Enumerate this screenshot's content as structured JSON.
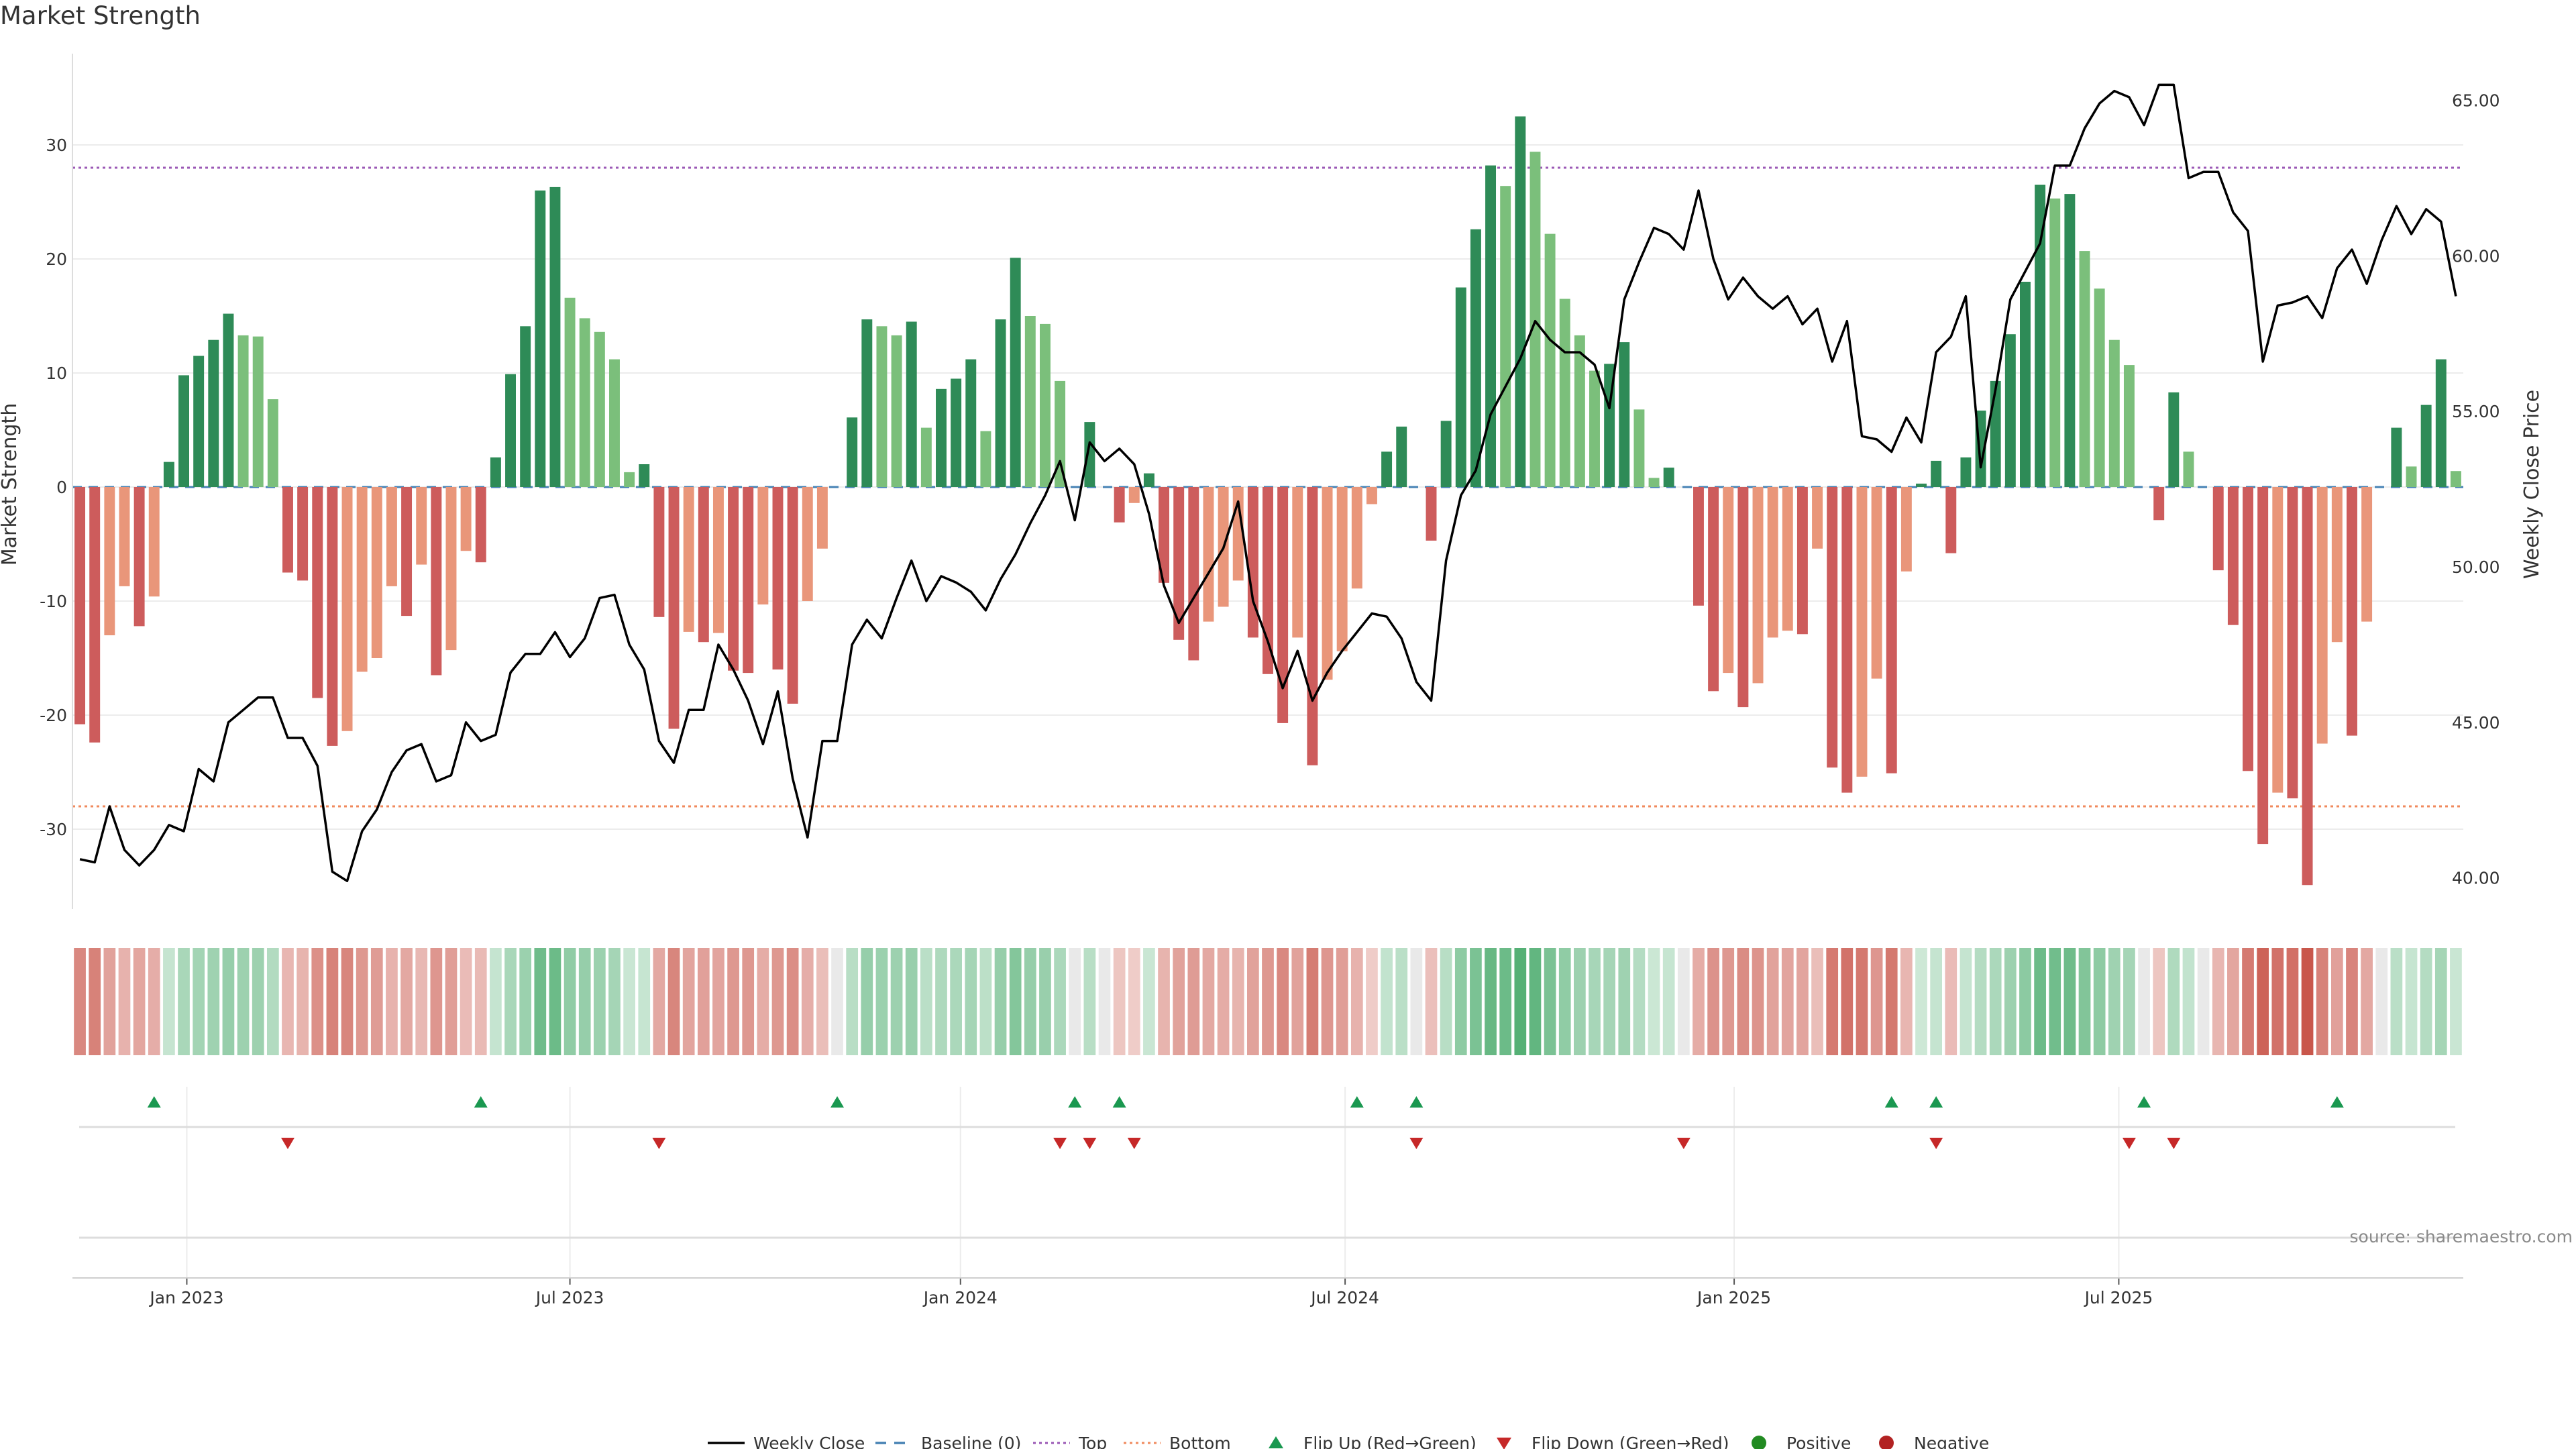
{
  "title": "Market Strength",
  "source": "source: sharemaestro.com",
  "colors": {
    "strong_green": "#2e8b57",
    "light_green": "#7bbf7b",
    "strong_red": "#cd5c5c",
    "light_red": "#e9967a",
    "price_line": "#000000",
    "baseline": "#4682b4",
    "top": "#9b59b6",
    "bottom": "#f08a5d",
    "flip_up": "#1a9850",
    "flip_down": "#c62828",
    "positive": "#228b22",
    "negative": "#b22222"
  },
  "legend": [
    {
      "key": "weekly_close",
      "label": "Weekly Close",
      "symbol": "line",
      "color": "#000000"
    },
    {
      "key": "baseline",
      "label": "Baseline (0)",
      "symbol": "dash",
      "color": "#4682b4"
    },
    {
      "key": "top",
      "label": "Top",
      "symbol": "dot",
      "color": "#9b59b6"
    },
    {
      "key": "bottom",
      "label": "Bottom",
      "symbol": "dot",
      "color": "#f08a5d"
    },
    {
      "key": "flip_up",
      "label": "Flip Up (Red→Green)",
      "symbol": "up",
      "color": "#1a9850"
    },
    {
      "key": "flip_down",
      "label": "Flip Down (Green→Red)",
      "symbol": "down",
      "color": "#c62828"
    },
    {
      "key": "positive",
      "label": "Positive",
      "symbol": "circle",
      "color": "#228b22"
    },
    {
      "key": "negative",
      "label": "Negative",
      "symbol": "circle",
      "color": "#b22222"
    }
  ],
  "chart_data": {
    "type": "bar",
    "title": "Market Strength",
    "ylabel": "Market Strength",
    "y2label": "Weekly Close Price",
    "ylim": [
      -37,
      38
    ],
    "y2lim": [
      39,
      66.5
    ],
    "yticks": [
      -30,
      -20,
      -10,
      0,
      10,
      20,
      30
    ],
    "y2ticks": [
      "40.00",
      "45.00",
      "50.00",
      "55.00",
      "60.00",
      "65.00"
    ],
    "top_line": 28,
    "bottom_line": -28,
    "x_tick_labels": [
      "Jan 2023",
      "Jul 2023",
      "Jan 2024",
      "Jul 2024",
      "Jan 2025",
      "Jul 2025"
    ],
    "x_tick_weeks": [
      7.7,
      33.5,
      59.8,
      85.7,
      111.9,
      137.8
    ],
    "strength": [
      -20.8,
      -22.4,
      -13,
      -8.7,
      -12.2,
      -9.6,
      2.2,
      9.8,
      11.5,
      12.9,
      15.2,
      13.3,
      13.2,
      7.7,
      -7.5,
      -8.2,
      -18.5,
      -22.7,
      -21.4,
      -16.2,
      -15,
      -8.7,
      -11.3,
      -6.8,
      -16.5,
      -14.3,
      -5.6,
      -6.6,
      2.6,
      9.9,
      14.1,
      26,
      26.3,
      16.6,
      14.8,
      13.6,
      11.2,
      1.3,
      2,
      -11.4,
      -21.2,
      -12.7,
      -13.6,
      -12.8,
      -16.1,
      -16.3,
      -10.3,
      -16,
      -19,
      -10,
      -5.4,
      0,
      6.1,
      14.7,
      14.1,
      13.3,
      14.5,
      5.2,
      8.6,
      9.5,
      11.2,
      4.9,
      14.7,
      20.1,
      15,
      14.3,
      9.3,
      0,
      5.7,
      0,
      -3.1,
      -1.4,
      1.2,
      -8.4,
      -13.4,
      -15.2,
      -11.8,
      -10.5,
      -8.2,
      -13.2,
      -16.4,
      -20.7,
      -13.2,
      -24.4,
      -16.9,
      -14.4,
      -8.9,
      -1.5,
      3.1,
      5.3,
      0,
      -4.7,
      5.8,
      17.5,
      22.6,
      28.2,
      26.4,
      32.5,
      29.4,
      22.2,
      16.5,
      13.3,
      10.2,
      10.8,
      12.7,
      6.8,
      0.8,
      1.7,
      0,
      -10.4,
      -17.9,
      -16.3,
      -19.3,
      -17.2,
      -13.2,
      -12.6,
      -12.9,
      -5.4,
      -24.6,
      -26.8,
      -25.4,
      -16.8,
      -25.1,
      -7.4,
      0.3,
      2.3,
      -5.8,
      2.6,
      6.7,
      9.3,
      13.4,
      18,
      26.5,
      25.3,
      25.7,
      20.7,
      17.4,
      12.9,
      10.7,
      0,
      -2.9,
      8.3,
      3.1,
      0,
      -7.3,
      -12.1,
      -24.9,
      -31.3,
      -26.8,
      -27.3,
      -34.9,
      -22.5,
      -13.6,
      -21.8,
      -11.8,
      0,
      5.2,
      1.8,
      7.2,
      11.2,
      1.4
    ],
    "weekly_close": [
      40.6,
      40.5,
      42.3,
      40.9,
      40.4,
      40.9,
      41.7,
      41.5,
      43.5,
      43.1,
      45,
      45.4,
      45.8,
      45.8,
      44.5,
      44.5,
      43.6,
      40.2,
      39.9,
      41.5,
      42.2,
      43.4,
      44.1,
      44.3,
      43.1,
      43.3,
      45,
      44.4,
      44.6,
      46.6,
      47.2,
      47.2,
      47.9,
      47.1,
      47.7,
      49,
      49.1,
      47.5,
      46.7,
      44.4,
      43.7,
      45.4,
      45.4,
      47.5,
      46.7,
      45.7,
      44.3,
      46,
      43.2,
      41.3,
      44.4,
      44.4,
      47.5,
      48.3,
      47.7,
      49,
      50.2,
      48.9,
      49.7,
      49.5,
      49.2,
      48.6,
      49.6,
      50.4,
      51.4,
      52.3,
      53.4,
      51.5,
      54,
      53.4,
      53.8,
      53.3,
      51.7,
      49.4,
      48.2,
      49,
      49.8,
      50.6,
      52.1,
      48.9,
      47.6,
      46.1,
      47.3,
      45.7,
      46.6,
      47.3,
      47.9,
      48.5,
      48.4,
      47.7,
      46.3,
      45.7,
      50.2,
      52.3,
      53.1,
      54.9,
      55.8,
      56.7,
      57.9,
      57.3,
      56.9,
      56.9,
      56.5,
      55.1,
      58.6,
      59.8,
      60.9,
      60.7,
      60.2,
      62.1,
      59.9,
      58.6,
      59.3,
      58.7,
      58.3,
      58.7,
      57.8,
      58.3,
      56.6,
      57.9,
      54.2,
      54.1,
      53.7,
      54.8,
      54,
      56.9,
      57.4,
      58.7,
      53.2,
      55.7,
      58.6,
      59.5,
      60.4,
      62.9,
      62.9,
      64.1,
      64.9,
      65.3,
      65.1,
      64.2,
      65.5,
      65.5,
      62.5,
      62.7,
      62.7,
      61.4,
      60.8,
      56.6,
      58.4,
      58.5,
      58.7,
      58,
      59.6,
      60.2,
      59.1,
      60.5,
      61.6,
      60.7,
      61.5,
      61.1,
      58.7
    ],
    "flip_up_weeks": [
      5,
      27,
      51,
      67,
      70,
      86,
      90,
      122,
      125,
      139,
      152
    ],
    "flip_down_weeks": [
      14,
      39,
      66,
      68,
      71,
      90,
      108,
      125,
      138,
      141
    ]
  }
}
